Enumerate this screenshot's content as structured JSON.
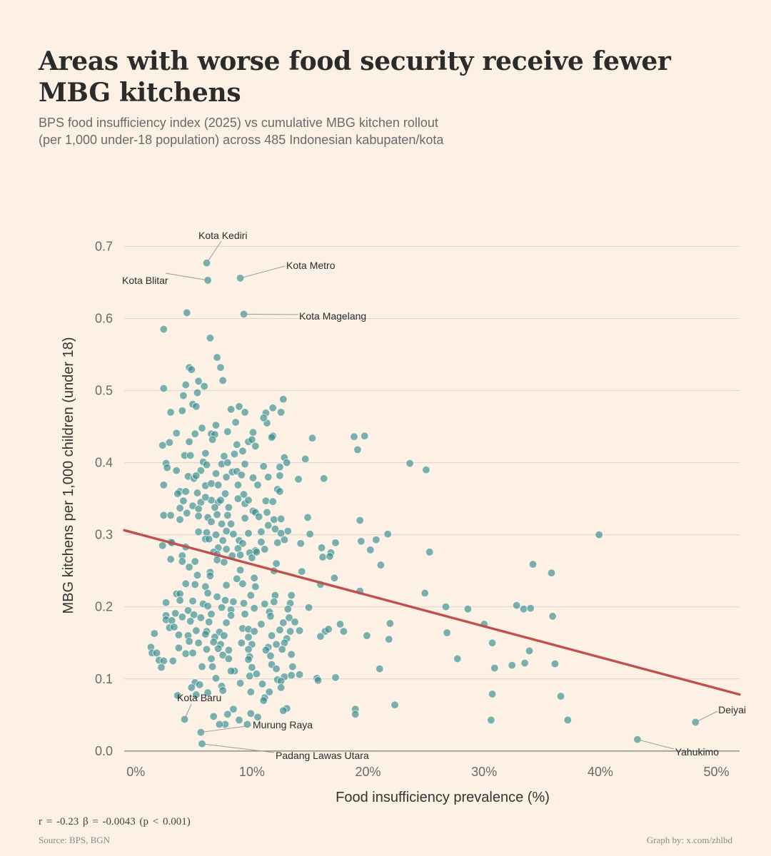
{
  "title": "Areas with worse food security receive fewer MBG kitchens",
  "subtitle_line1": "BPS food insufficiency index (2025) vs cumulative MBG kitchen rollout",
  "subtitle_line2": "(per 1,000 under-18 population) across 485 Indonesian kabupaten/kota",
  "stats_line": "r = -0.23   β = -0.0043 (p < 0.001)",
  "source": "Source: BPS, BGN",
  "credit": "Graph by: x.com/zhlbd",
  "colors": {
    "background": "#fdf1e6",
    "point": "#3d8f8f",
    "trend": "#c0504d",
    "grid": "#dcd3ca",
    "axis": "#7a7a7a"
  },
  "chart_data": {
    "type": "scatter",
    "xlabel": "Food insufficiency prevalence (%)",
    "ylabel": "MBG kitchens per 1,000 children (under 18)",
    "xlim": [
      -1,
      52
    ],
    "ylim": [
      -0.015,
      0.74
    ],
    "x_ticks": [
      0,
      10,
      20,
      30,
      40,
      50
    ],
    "x_tick_labels": [
      "0%",
      "10%",
      "20%",
      "30%",
      "40%",
      "50%"
    ],
    "y_ticks": [
      0.0,
      0.1,
      0.2,
      0.3,
      0.4,
      0.5,
      0.6,
      0.7
    ],
    "y_tick_labels": [
      "0.0",
      "0.1",
      "0.2",
      "0.3",
      "0.4",
      "0.5",
      "0.6",
      "0.7"
    ],
    "grid": "horizontal",
    "trendline": {
      "intercept": 0.302,
      "slope": -0.0043,
      "x_range": [
        -1,
        52
      ]
    },
    "labeled_points": [
      {
        "name": "Kota Kediri",
        "x": 6.1,
        "y": 0.677
      },
      {
        "name": "Kota Blitar",
        "x": 6.2,
        "y": 0.653
      },
      {
        "name": "Kota Metro",
        "x": 9.0,
        "y": 0.656
      },
      {
        "name": "Kota Magelang",
        "x": 9.3,
        "y": 0.606
      },
      {
        "name": "Kota Baru",
        "x": 4.2,
        "y": 0.044
      },
      {
        "name": "Murung Raya",
        "x": 5.6,
        "y": 0.026
      },
      {
        "name": "Padang Lawas Utara",
        "x": 5.7,
        "y": 0.01
      },
      {
        "name": "Deiyai",
        "x": 48.2,
        "y": 0.04
      },
      {
        "name": "Yahukimo",
        "x": 43.2,
        "y": 0.016
      }
    ],
    "points": [
      [
        2.4,
        0.585
      ],
      [
        4.4,
        0.608
      ],
      [
        6.4,
        0.573
      ],
      [
        7.0,
        0.546
      ],
      [
        7.3,
        0.532
      ],
      [
        4.6,
        0.532
      ],
      [
        4.8,
        0.529
      ],
      [
        7.5,
        0.514
      ],
      [
        5.4,
        0.513
      ],
      [
        4.3,
        0.508
      ],
      [
        5.9,
        0.506
      ],
      [
        2.4,
        0.503
      ],
      [
        5.3,
        0.497
      ],
      [
        4.1,
        0.493
      ],
      [
        12.7,
        0.488
      ],
      [
        4.9,
        0.481
      ],
      [
        5.2,
        0.478
      ],
      [
        8.9,
        0.478
      ],
      [
        4.0,
        0.472
      ],
      [
        11.8,
        0.476
      ],
      [
        8.2,
        0.474
      ],
      [
        9.4,
        0.47
      ],
      [
        11.2,
        0.469
      ],
      [
        12.5,
        0.47
      ],
      [
        6.9,
        0.452
      ],
      [
        8.6,
        0.456
      ],
      [
        11.3,
        0.455
      ],
      [
        11.0,
        0.462
      ],
      [
        3.0,
        0.47
      ],
      [
        10.1,
        0.442
      ],
      [
        5.7,
        0.448
      ],
      [
        6.5,
        0.44
      ],
      [
        6.8,
        0.439
      ],
      [
        3.5,
        0.441
      ],
      [
        5.1,
        0.44
      ],
      [
        7.9,
        0.443
      ],
      [
        9.7,
        0.429
      ],
      [
        10.0,
        0.432
      ],
      [
        8.7,
        0.425
      ],
      [
        6.6,
        0.432
      ],
      [
        4.6,
        0.429
      ],
      [
        2.9,
        0.428
      ],
      [
        2.3,
        0.424
      ],
      [
        11.8,
        0.437
      ],
      [
        15.2,
        0.434
      ],
      [
        18.8,
        0.436
      ],
      [
        19.7,
        0.437
      ],
      [
        19.1,
        0.418
      ],
      [
        4.2,
        0.41
      ],
      [
        4.7,
        0.41
      ],
      [
        6.0,
        0.413
      ],
      [
        7.6,
        0.409
      ],
      [
        10.3,
        0.423
      ],
      [
        11.7,
        0.435
      ],
      [
        9.2,
        0.416
      ],
      [
        8.5,
        0.412
      ],
      [
        12.8,
        0.407
      ],
      [
        14.6,
        0.405
      ],
      [
        5.8,
        0.401
      ],
      [
        7.4,
        0.398
      ],
      [
        7.9,
        0.4
      ],
      [
        9.4,
        0.398
      ],
      [
        11.0,
        0.395
      ],
      [
        12.4,
        0.394
      ],
      [
        13.0,
        0.4
      ],
      [
        23.6,
        0.399
      ],
      [
        25.0,
        0.39
      ],
      [
        2.6,
        0.399
      ],
      [
        2.7,
        0.393
      ],
      [
        3.5,
        0.389
      ],
      [
        6.1,
        0.397
      ],
      [
        5.6,
        0.389
      ],
      [
        6.9,
        0.385
      ],
      [
        8.3,
        0.387
      ],
      [
        8.7,
        0.388
      ],
      [
        4.5,
        0.381
      ],
      [
        5.0,
        0.378
      ],
      [
        5.2,
        0.382
      ],
      [
        7.8,
        0.38
      ],
      [
        9.1,
        0.383
      ],
      [
        10.1,
        0.379
      ],
      [
        11.4,
        0.38
      ],
      [
        12.4,
        0.382
      ],
      [
        14.0,
        0.377
      ],
      [
        16.2,
        0.378
      ],
      [
        2.4,
        0.369
      ],
      [
        6.0,
        0.368
      ],
      [
        6.5,
        0.371
      ],
      [
        7.1,
        0.369
      ],
      [
        8.8,
        0.369
      ],
      [
        10.5,
        0.369
      ],
      [
        12.2,
        0.363
      ],
      [
        3.8,
        0.36
      ],
      [
        4.3,
        0.36
      ],
      [
        5.3,
        0.358
      ],
      [
        7.7,
        0.357
      ],
      [
        9.3,
        0.356
      ],
      [
        12.4,
        0.36
      ],
      [
        3.6,
        0.357
      ],
      [
        4.1,
        0.347
      ],
      [
        5.6,
        0.345
      ],
      [
        6.5,
        0.348
      ],
      [
        6.0,
        0.352
      ],
      [
        7.1,
        0.345
      ],
      [
        7.3,
        0.348
      ],
      [
        8.8,
        0.35
      ],
      [
        9.4,
        0.343
      ],
      [
        9.7,
        0.348
      ],
      [
        11.2,
        0.347
      ],
      [
        11.8,
        0.346
      ],
      [
        3.8,
        0.337
      ],
      [
        4.9,
        0.34
      ],
      [
        5.4,
        0.336
      ],
      [
        6.8,
        0.338
      ],
      [
        8.0,
        0.338
      ],
      [
        10.1,
        0.333
      ],
      [
        10.3,
        0.331
      ],
      [
        11.3,
        0.331
      ],
      [
        4.4,
        0.33
      ],
      [
        2.4,
        0.327
      ],
      [
        3.0,
        0.327
      ],
      [
        5.4,
        0.326
      ],
      [
        6.2,
        0.324
      ],
      [
        7.0,
        0.328
      ],
      [
        7.9,
        0.327
      ],
      [
        9.4,
        0.323
      ],
      [
        10.6,
        0.325
      ],
      [
        11.9,
        0.321
      ],
      [
        12.5,
        0.322
      ],
      [
        14.8,
        0.324
      ],
      [
        3.8,
        0.321
      ],
      [
        6.5,
        0.318
      ],
      [
        7.4,
        0.315
      ],
      [
        8.2,
        0.315
      ],
      [
        11.4,
        0.313
      ],
      [
        12.0,
        0.308
      ],
      [
        13.1,
        0.305
      ],
      [
        19.3,
        0.32
      ],
      [
        5.4,
        0.304
      ],
      [
        6.1,
        0.303
      ],
      [
        6.9,
        0.3
      ],
      [
        7.8,
        0.305
      ],
      [
        8.4,
        0.301
      ],
      [
        9.7,
        0.302
      ],
      [
        10.8,
        0.304
      ],
      [
        12.5,
        0.302
      ],
      [
        15.0,
        0.301
      ],
      [
        21.7,
        0.301
      ],
      [
        39.9,
        0.3
      ],
      [
        6.0,
        0.294
      ],
      [
        6.3,
        0.294
      ],
      [
        7.5,
        0.292
      ],
      [
        8.9,
        0.292
      ],
      [
        9.2,
        0.288
      ],
      [
        10.8,
        0.29
      ],
      [
        12.2,
        0.289
      ],
      [
        12.8,
        0.293
      ],
      [
        14.2,
        0.288
      ],
      [
        17.2,
        0.289
      ],
      [
        19.4,
        0.291
      ],
      [
        20.7,
        0.293
      ],
      [
        3.0,
        0.29
      ],
      [
        3.1,
        0.289
      ],
      [
        2.3,
        0.285
      ],
      [
        4.3,
        0.283
      ],
      [
        7.1,
        0.282
      ],
      [
        7.8,
        0.28
      ],
      [
        8.8,
        0.281
      ],
      [
        10.3,
        0.278
      ],
      [
        11.1,
        0.28
      ],
      [
        16.0,
        0.282
      ],
      [
        16.8,
        0.275
      ],
      [
        20.2,
        0.279
      ],
      [
        6.7,
        0.276
      ],
      [
        7.0,
        0.273
      ],
      [
        8.3,
        0.271
      ],
      [
        9.0,
        0.272
      ],
      [
        9.8,
        0.275
      ],
      [
        10.0,
        0.268
      ],
      [
        10.4,
        0.276
      ],
      [
        16.1,
        0.269
      ],
      [
        16.7,
        0.27
      ],
      [
        25.3,
        0.276
      ],
      [
        4.0,
        0.271
      ],
      [
        3.0,
        0.266
      ],
      [
        4.0,
        0.263
      ],
      [
        5.1,
        0.263
      ],
      [
        7.0,
        0.265
      ],
      [
        7.6,
        0.262
      ],
      [
        12.1,
        0.26
      ],
      [
        21.1,
        0.258
      ],
      [
        34.2,
        0.259
      ],
      [
        4.6,
        0.255
      ],
      [
        6.4,
        0.248
      ],
      [
        9.0,
        0.251
      ],
      [
        11.9,
        0.25
      ],
      [
        14.3,
        0.249
      ],
      [
        35.8,
        0.247
      ],
      [
        5.3,
        0.244
      ],
      [
        6.4,
        0.243
      ],
      [
        8.7,
        0.239
      ],
      [
        10.2,
        0.24
      ],
      [
        17.1,
        0.24
      ],
      [
        4.3,
        0.232
      ],
      [
        5.1,
        0.231
      ],
      [
        6.0,
        0.228
      ],
      [
        7.8,
        0.23
      ],
      [
        9.2,
        0.232
      ],
      [
        10.3,
        0.228
      ],
      [
        15.9,
        0.231
      ],
      [
        19.3,
        0.222
      ],
      [
        3.5,
        0.218
      ],
      [
        3.8,
        0.218
      ],
      [
        6.2,
        0.219
      ],
      [
        7.0,
        0.214
      ],
      [
        9.9,
        0.216
      ],
      [
        12.0,
        0.216
      ],
      [
        13.4,
        0.216
      ],
      [
        24.9,
        0.219
      ],
      [
        2.6,
        0.206
      ],
      [
        3.8,
        0.209
      ],
      [
        4.9,
        0.208
      ],
      [
        5.8,
        0.204
      ],
      [
        7.7,
        0.209
      ],
      [
        8.4,
        0.207
      ],
      [
        9.3,
        0.205
      ],
      [
        11.1,
        0.204
      ],
      [
        11.9,
        0.207
      ],
      [
        13.3,
        0.205
      ],
      [
        6.2,
        0.201
      ],
      [
        7.4,
        0.199
      ],
      [
        8.2,
        0.196
      ],
      [
        10.2,
        0.198
      ],
      [
        11.5,
        0.193
      ],
      [
        13.1,
        0.197
      ],
      [
        14.9,
        0.199
      ],
      [
        26.7,
        0.2
      ],
      [
        28.6,
        0.197
      ],
      [
        32.8,
        0.202
      ],
      [
        33.4,
        0.197
      ],
      [
        34.0,
        0.198
      ],
      [
        35.9,
        0.187
      ],
      [
        2.6,
        0.188
      ],
      [
        3.4,
        0.191
      ],
      [
        4.0,
        0.186
      ],
      [
        4.5,
        0.195
      ],
      [
        5.0,
        0.189
      ],
      [
        5.6,
        0.185
      ],
      [
        6.5,
        0.19
      ],
      [
        8.2,
        0.188
      ],
      [
        9.4,
        0.19
      ],
      [
        11.6,
        0.187
      ],
      [
        13.2,
        0.185
      ],
      [
        2.6,
        0.182
      ],
      [
        3.1,
        0.181
      ],
      [
        4.7,
        0.18
      ],
      [
        6.3,
        0.179
      ],
      [
        7.8,
        0.178
      ],
      [
        10.8,
        0.176
      ],
      [
        12.7,
        0.178
      ],
      [
        13.7,
        0.179
      ],
      [
        21.9,
        0.177
      ],
      [
        2.9,
        0.171
      ],
      [
        3.3,
        0.172
      ],
      [
        5.2,
        0.167
      ],
      [
        6.1,
        0.166
      ],
      [
        7.2,
        0.165
      ],
      [
        9.2,
        0.17
      ],
      [
        9.7,
        0.169
      ],
      [
        10.2,
        0.166
      ],
      [
        12.4,
        0.168
      ],
      [
        13.3,
        0.166
      ],
      [
        14.1,
        0.167
      ],
      [
        16.3,
        0.166
      ],
      [
        16.6,
        0.169
      ],
      [
        17.6,
        0.176
      ],
      [
        17.9,
        0.166
      ],
      [
        30.0,
        0.176
      ],
      [
        1.6,
        0.163
      ],
      [
        3.7,
        0.161
      ],
      [
        4.5,
        0.16
      ],
      [
        6.0,
        0.162
      ],
      [
        6.8,
        0.158
      ],
      [
        7.6,
        0.16
      ],
      [
        9.7,
        0.158
      ],
      [
        11.7,
        0.16
      ],
      [
        13.0,
        0.156
      ],
      [
        15.9,
        0.159
      ],
      [
        19.9,
        0.16
      ],
      [
        21.8,
        0.155
      ],
      [
        26.8,
        0.164
      ],
      [
        4.6,
        0.152
      ],
      [
        5.4,
        0.15
      ],
      [
        6.7,
        0.151
      ],
      [
        7.3,
        0.148
      ],
      [
        9.1,
        0.15
      ],
      [
        10.0,
        0.148
      ],
      [
        11.4,
        0.144
      ],
      [
        12.1,
        0.148
      ],
      [
        12.8,
        0.15
      ],
      [
        30.7,
        0.15
      ],
      [
        1.3,
        0.144
      ],
      [
        3.7,
        0.143
      ],
      [
        6.1,
        0.141
      ],
      [
        7.1,
        0.142
      ],
      [
        8.0,
        0.14
      ],
      [
        9.7,
        0.141
      ],
      [
        11.2,
        0.14
      ],
      [
        12.6,
        0.141
      ],
      [
        33.9,
        0.139
      ],
      [
        1.4,
        0.136
      ],
      [
        1.8,
        0.136
      ],
      [
        4.3,
        0.135
      ],
      [
        4.9,
        0.136
      ],
      [
        7.5,
        0.133
      ],
      [
        9.8,
        0.131
      ],
      [
        11.6,
        0.132
      ],
      [
        13.4,
        0.134
      ],
      [
        2.0,
        0.126
      ],
      [
        2.4,
        0.125
      ],
      [
        3.2,
        0.125
      ],
      [
        6.5,
        0.128
      ],
      [
        8.0,
        0.128
      ],
      [
        9.7,
        0.127
      ],
      [
        27.7,
        0.128
      ],
      [
        2.2,
        0.116
      ],
      [
        5.7,
        0.117
      ],
      [
        6.6,
        0.117
      ],
      [
        8.5,
        0.111
      ],
      [
        10.0,
        0.116
      ],
      [
        11.7,
        0.12
      ],
      [
        12.1,
        0.114
      ],
      [
        13.5,
        0.117
      ],
      [
        21.0,
        0.114
      ],
      [
        30.9,
        0.115
      ],
      [
        32.4,
        0.119
      ],
      [
        33.5,
        0.122
      ],
      [
        36.1,
        0.121
      ],
      [
        5.1,
        0.095
      ],
      [
        6.9,
        0.101
      ],
      [
        8.2,
        0.111
      ],
      [
        9.8,
        0.104
      ],
      [
        10.4,
        0.107
      ],
      [
        12.2,
        0.099
      ],
      [
        12.8,
        0.103
      ],
      [
        13.4,
        0.105
      ],
      [
        14.1,
        0.106
      ],
      [
        15.6,
        0.101
      ],
      [
        17.2,
        0.102
      ],
      [
        4.8,
        0.088
      ],
      [
        5.5,
        0.092
      ],
      [
        7.4,
        0.09
      ],
      [
        9.0,
        0.094
      ],
      [
        10.9,
        0.093
      ],
      [
        12.5,
        0.097
      ],
      [
        15.7,
        0.098
      ],
      [
        6.2,
        0.081
      ],
      [
        7.5,
        0.084
      ],
      [
        9.9,
        0.082
      ],
      [
        11.1,
        0.074
      ],
      [
        11.5,
        0.082
      ],
      [
        12.5,
        0.088
      ],
      [
        3.6,
        0.077
      ],
      [
        5.2,
        0.078
      ],
      [
        11.0,
        0.07
      ],
      [
        30.7,
        0.079
      ],
      [
        36.6,
        0.076
      ],
      [
        22.3,
        0.064
      ],
      [
        13.0,
        0.059
      ],
      [
        12.7,
        0.056
      ],
      [
        18.9,
        0.058
      ],
      [
        18.9,
        0.051
      ],
      [
        9.9,
        0.052
      ],
      [
        8.4,
        0.058
      ],
      [
        7.9,
        0.051
      ],
      [
        6.7,
        0.048
      ],
      [
        10.5,
        0.047
      ],
      [
        8.9,
        0.043
      ],
      [
        30.6,
        0.043
      ],
      [
        37.2,
        0.043
      ],
      [
        7.7,
        0.037
      ],
      [
        7.2,
        0.037
      ],
      [
        9.6,
        0.037
      ],
      [
        6.1,
        0.677
      ],
      [
        6.2,
        0.653
      ],
      [
        9.0,
        0.656
      ],
      [
        9.3,
        0.606
      ],
      [
        4.2,
        0.044
      ],
      [
        5.6,
        0.026
      ],
      [
        5.7,
        0.01
      ],
      [
        48.2,
        0.04
      ],
      [
        43.2,
        0.016
      ]
    ]
  }
}
